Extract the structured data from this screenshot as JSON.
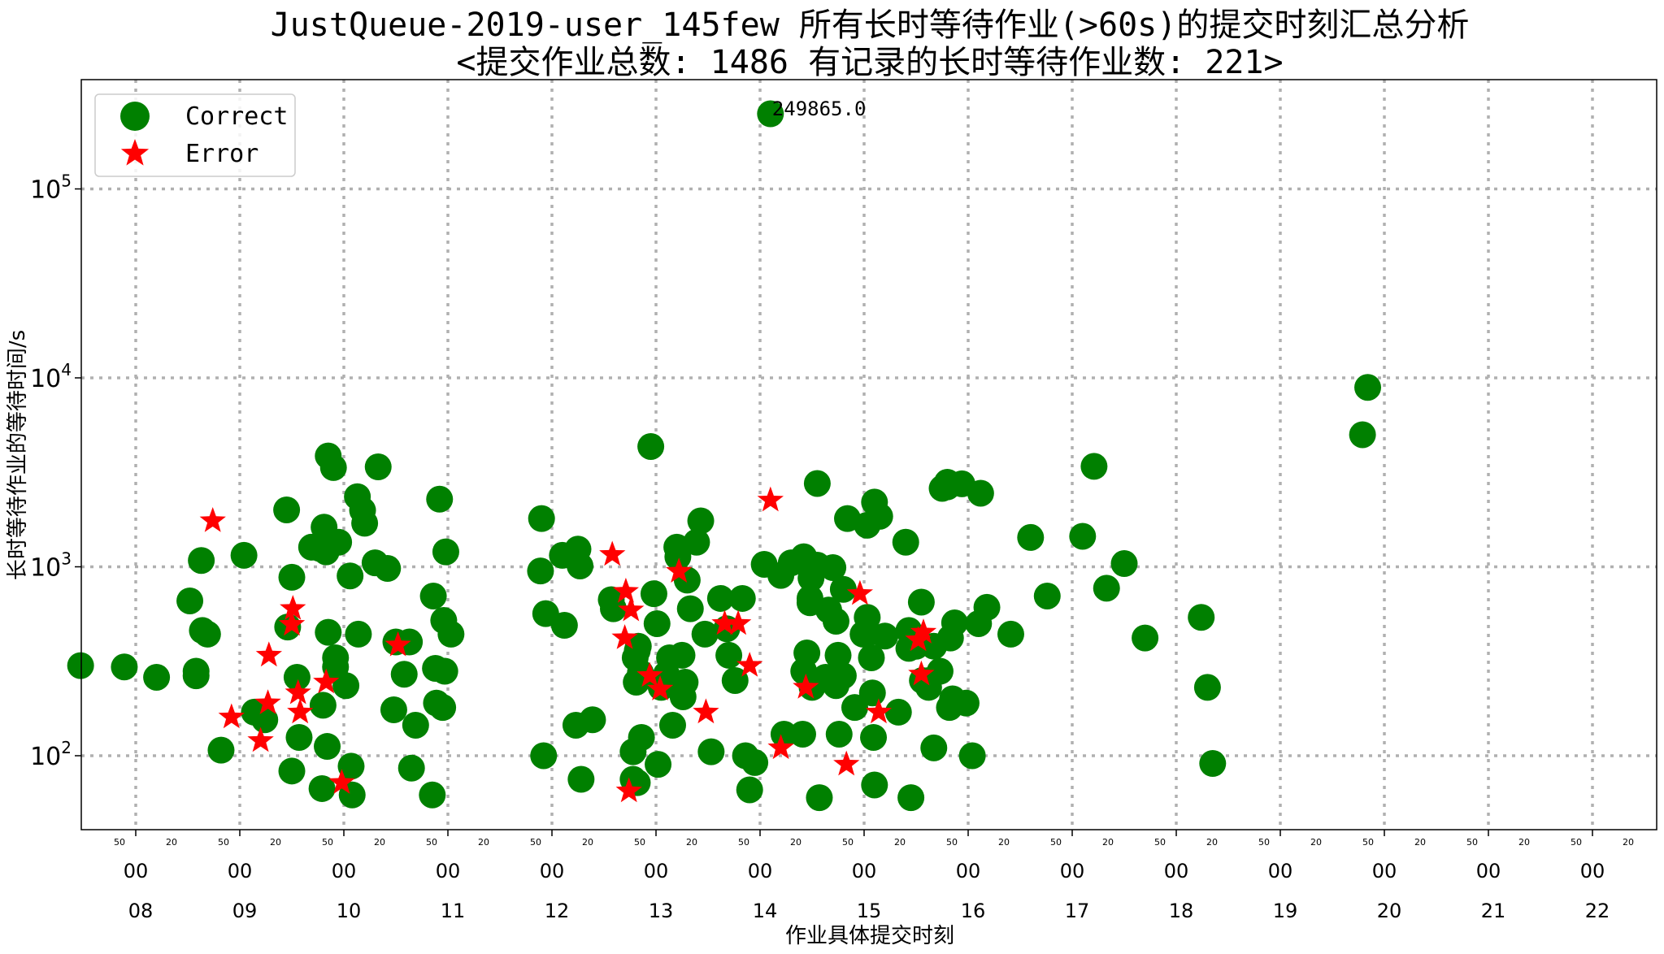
{
  "chart_data": {
    "type": "scatter",
    "title": "JustQueue-2019-user_145few 所有长时等待作业(>60s)的提交时刻汇总分析",
    "subtitle": "<提交作业总数: 1486  有记录的长时等待作业数: 221>",
    "xlabel": "作业具体提交时刻",
    "ylabel": "长时等待作业的等待时间/s",
    "yscale": "log",
    "ylim": [
      40,
      400000
    ],
    "xlim": [
      7.47,
      22.6
    ],
    "y_ticks": [
      {
        "value": 100,
        "base": "10",
        "exp": "2"
      },
      {
        "value": 1000,
        "base": "10",
        "exp": "3"
      },
      {
        "value": 10000,
        "base": "10",
        "exp": "4"
      },
      {
        "value": 100000,
        "base": "10",
        "exp": "5"
      }
    ],
    "x_hour_ticks": [
      {
        "value": 8,
        "label": "08",
        "sub": "00"
      },
      {
        "value": 9,
        "label": "09",
        "sub": "00"
      },
      {
        "value": 10,
        "label": "10",
        "sub": "00"
      },
      {
        "value": 11,
        "label": "11",
        "sub": "00"
      },
      {
        "value": 12,
        "label": "12",
        "sub": "00"
      },
      {
        "value": 13,
        "label": "13",
        "sub": "00"
      },
      {
        "value": 14,
        "label": "14",
        "sub": "00"
      },
      {
        "value": 15,
        "label": "15",
        "sub": "00"
      },
      {
        "value": 16,
        "label": "16",
        "sub": "00"
      },
      {
        "value": 17,
        "label": "17",
        "sub": "00"
      },
      {
        "value": 18,
        "label": "18",
        "sub": "00"
      },
      {
        "value": 19,
        "label": "19",
        "sub": "00"
      },
      {
        "value": 20,
        "label": "20",
        "sub": "00"
      },
      {
        "value": 21,
        "label": "21",
        "sub": "00"
      },
      {
        "value": 22,
        "label": "22",
        "sub": "00"
      }
    ],
    "x_minor_labels": [
      "50",
      "20"
    ],
    "grid": true,
    "legend": {
      "position": "top-left",
      "entries": [
        "Correct",
        "Error"
      ]
    },
    "annotations": [
      {
        "x": 14.1,
        "y": 249865.0,
        "text": "249865.0"
      }
    ],
    "colors": {
      "Correct": "#008000",
      "Error": "#ff0000",
      "grid": "#b0b0b0"
    },
    "series": [
      {
        "name": "Correct",
        "marker": "circle",
        "points": [
          [
            7.47,
            300
          ],
          [
            7.89,
            295
          ],
          [
            8.2,
            260
          ],
          [
            8.52,
            660
          ],
          [
            8.58,
            280
          ],
          [
            8.58,
            265
          ],
          [
            8.63,
            1080
          ],
          [
            8.64,
            460
          ],
          [
            8.69,
            440
          ],
          [
            8.82,
            107
          ],
          [
            9.04,
            1150
          ],
          [
            9.14,
            170
          ],
          [
            9.24,
            155
          ],
          [
            9.45,
            2000
          ],
          [
            9.46,
            480
          ],
          [
            9.5,
            880
          ],
          [
            9.5,
            83
          ],
          [
            9.55,
            260
          ],
          [
            9.57,
            125
          ],
          [
            9.69,
            1270
          ],
          [
            9.77,
            1250
          ],
          [
            9.79,
            67
          ],
          [
            9.8,
            185
          ],
          [
            9.81,
            1620
          ],
          [
            9.83,
            1200
          ],
          [
            9.84,
            112
          ],
          [
            9.85,
            3860
          ],
          [
            9.85,
            450
          ],
          [
            9.9,
            3350
          ],
          [
            9.92,
            330
          ],
          [
            9.92,
            295
          ],
          [
            9.95,
            1350
          ],
          [
            10.02,
            235
          ],
          [
            10.06,
            895
          ],
          [
            10.07,
            88
          ],
          [
            10.08,
            62
          ],
          [
            10.13,
            2350
          ],
          [
            10.14,
            440
          ],
          [
            10.18,
            1990
          ],
          [
            10.2,
            1700
          ],
          [
            10.3,
            1050
          ],
          [
            10.33,
            3380
          ],
          [
            10.42,
            980
          ],
          [
            10.48,
            175
          ],
          [
            10.5,
            400
          ],
          [
            10.58,
            270
          ],
          [
            10.63,
            400
          ],
          [
            10.65,
            86
          ],
          [
            10.69,
            145
          ],
          [
            10.85,
            62
          ],
          [
            10.86,
            700
          ],
          [
            10.88,
            290
          ],
          [
            10.89,
            190
          ],
          [
            10.92,
            2280
          ],
          [
            10.95,
            180
          ],
          [
            10.96,
            520
          ],
          [
            10.97,
            280
          ],
          [
            10.98,
            1200
          ],
          [
            11.03,
            440
          ],
          [
            11.89,
            950
          ],
          [
            11.9,
            1800
          ],
          [
            11.92,
            100
          ],
          [
            11.94,
            565
          ],
          [
            12.1,
            1150
          ],
          [
            12.12,
            490
          ],
          [
            12.23,
            145
          ],
          [
            12.25,
            1240
          ],
          [
            12.27,
            1010
          ],
          [
            12.28,
            75
          ],
          [
            12.39,
            155
          ],
          [
            12.57,
            670
          ],
          [
            12.59,
            600
          ],
          [
            12.78,
            105
          ],
          [
            12.78,
            75
          ],
          [
            12.8,
            330
          ],
          [
            12.81,
            245
          ],
          [
            12.82,
            360
          ],
          [
            12.82,
            72
          ],
          [
            12.83,
            380
          ],
          [
            12.85,
            275
          ],
          [
            12.86,
            125
          ],
          [
            12.95,
            4330
          ],
          [
            12.98,
            720
          ],
          [
            13.01,
            500
          ],
          [
            13.02,
            90
          ],
          [
            13.05,
            230
          ],
          [
            13.1,
            270
          ],
          [
            13.13,
            330
          ],
          [
            13.16,
            145
          ],
          [
            13.2,
            1270
          ],
          [
            13.21,
            1130
          ],
          [
            13.25,
            340
          ],
          [
            13.26,
            205
          ],
          [
            13.28,
            245
          ],
          [
            13.3,
            850
          ],
          [
            13.33,
            600
          ],
          [
            13.39,
            1350
          ],
          [
            13.43,
            1750
          ],
          [
            13.47,
            440
          ],
          [
            13.53,
            105
          ],
          [
            13.62,
            680
          ],
          [
            13.68,
            470
          ],
          [
            13.7,
            340
          ],
          [
            13.76,
            250
          ],
          [
            13.83,
            680
          ],
          [
            13.86,
            100
          ],
          [
            13.9,
            66
          ],
          [
            13.95,
            92
          ],
          [
            14.04,
            1030
          ],
          [
            14.2,
            900
          ],
          [
            14.23,
            130
          ],
          [
            14.3,
            1050
          ],
          [
            14.41,
            130
          ],
          [
            14.42,
            1130
          ],
          [
            14.42,
            280
          ],
          [
            14.45,
            350
          ],
          [
            14.48,
            680
          ],
          [
            14.48,
            645
          ],
          [
            14.49,
            870
          ],
          [
            14.5,
            230
          ],
          [
            14.55,
            2760
          ],
          [
            14.55,
            1020
          ],
          [
            14.57,
            60
          ],
          [
            14.63,
            260
          ],
          [
            14.66,
            590
          ],
          [
            14.7,
            990
          ],
          [
            14.73,
            515
          ],
          [
            14.73,
            235
          ],
          [
            14.75,
            340
          ],
          [
            14.76,
            130
          ],
          [
            14.8,
            760
          ],
          [
            14.8,
            265
          ],
          [
            14.84,
            1800
          ],
          [
            14.91,
            180
          ],
          [
            14.99,
            440
          ],
          [
            15.02,
            440
          ],
          [
            15.03,
            540
          ],
          [
            15.03,
            1660
          ],
          [
            15.07,
            330
          ],
          [
            15.08,
            215
          ],
          [
            15.09,
            125
          ],
          [
            15.1,
            70
          ],
          [
            15.1,
            2200
          ],
          [
            15.15,
            1850
          ],
          [
            15.2,
            430
          ],
          [
            15.33,
            170
          ],
          [
            15.4,
            1350
          ],
          [
            15.43,
            460
          ],
          [
            15.43,
            370
          ],
          [
            15.45,
            60
          ],
          [
            15.5,
            380
          ],
          [
            15.55,
            650
          ],
          [
            15.56,
            250
          ],
          [
            15.62,
            230
          ],
          [
            15.62,
            250
          ],
          [
            15.67,
            110
          ],
          [
            15.67,
            380
          ],
          [
            15.73,
            280
          ],
          [
            15.75,
            2600
          ],
          [
            15.8,
            2650
          ],
          [
            15.8,
            2800
          ],
          [
            15.82,
            180
          ],
          [
            15.83,
            420
          ],
          [
            15.85,
            200
          ],
          [
            15.87,
            505
          ],
          [
            15.94,
            2750
          ],
          [
            15.98,
            190
          ],
          [
            16.04,
            100
          ],
          [
            16.1,
            500
          ],
          [
            16.12,
            2450
          ],
          [
            16.18,
            610
          ],
          [
            16.41,
            440
          ],
          [
            16.6,
            1430
          ],
          [
            16.76,
            700
          ],
          [
            17.1,
            1450
          ],
          [
            17.21,
            3400
          ],
          [
            17.33,
            770
          ],
          [
            17.5,
            1040
          ],
          [
            17.7,
            420
          ],
          [
            18.24,
            540
          ],
          [
            18.3,
            230
          ],
          [
            18.35,
            91
          ],
          [
            19.79,
            5000
          ],
          [
            19.84,
            8900
          ],
          [
            14.1,
            249865
          ]
        ]
      },
      {
        "name": "Error",
        "marker": "star",
        "points": [
          [
            8.74,
            1750
          ],
          [
            8.92,
            160
          ],
          [
            9.2,
            120
          ],
          [
            9.27,
            190
          ],
          [
            9.28,
            340
          ],
          [
            9.5,
            495
          ],
          [
            9.51,
            600
          ],
          [
            9.56,
            215
          ],
          [
            9.58,
            170
          ],
          [
            9.83,
            245
          ],
          [
            9.98,
            72
          ],
          [
            10.52,
            385
          ],
          [
            12.58,
            1160
          ],
          [
            12.7,
            420
          ],
          [
            12.71,
            740
          ],
          [
            12.74,
            65
          ],
          [
            12.76,
            590
          ],
          [
            12.94,
            265
          ],
          [
            13.04,
            225
          ],
          [
            13.22,
            945
          ],
          [
            13.48,
            170
          ],
          [
            13.66,
            500
          ],
          [
            13.79,
            500
          ],
          [
            13.9,
            300
          ],
          [
            14.1,
            2250
          ],
          [
            14.2,
            110
          ],
          [
            14.44,
            230
          ],
          [
            14.83,
            90
          ],
          [
            14.96,
            720
          ],
          [
            15.14,
            170
          ],
          [
            15.52,
            410
          ],
          [
            15.55,
            270
          ],
          [
            15.57,
            450
          ]
        ]
      }
    ]
  }
}
